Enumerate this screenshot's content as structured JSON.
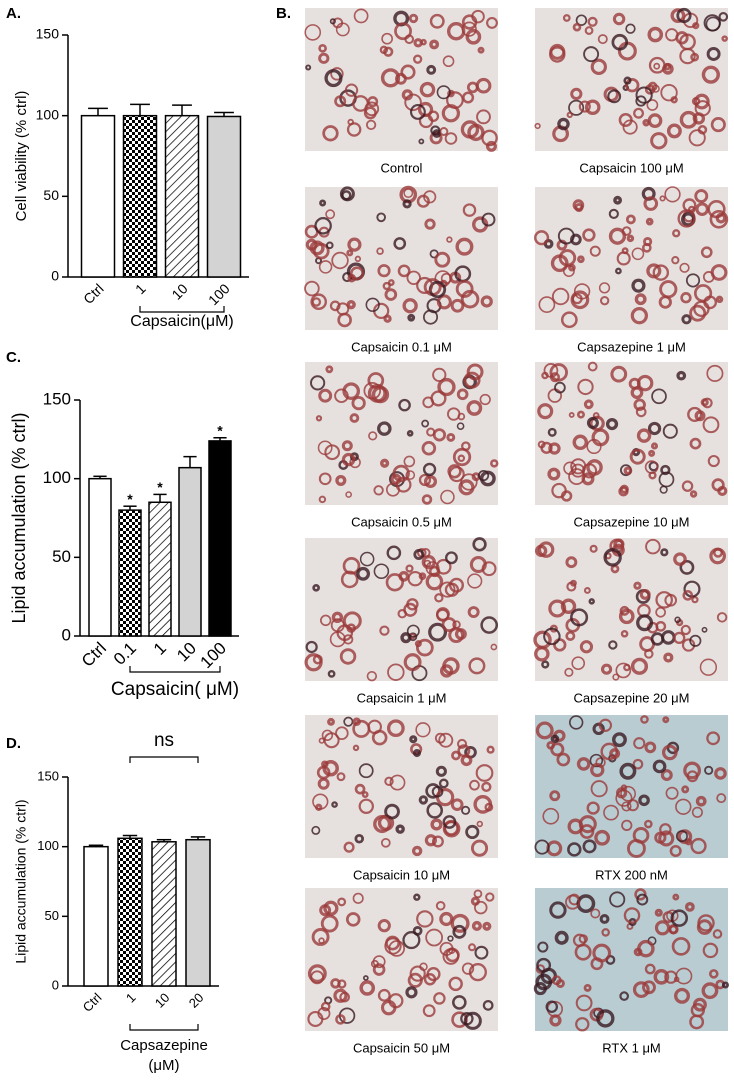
{
  "chart_data": [
    {
      "type": "bar",
      "panel": "A.",
      "ylabel": "Cell viability (% ctrl)",
      "categories": [
        "Ctrl",
        "1",
        "10",
        "100"
      ],
      "values": [
        100,
        100,
        100,
        99.5
      ],
      "errors": [
        4.5,
        7,
        6.5,
        2.5
      ],
      "fills": [
        "#ffffff",
        "checker",
        "hatch",
        "#d3d3d3"
      ],
      "group_label": [
        "Capsaicin(μM)"
      ],
      "ylim": [
        0,
        150
      ],
      "yticks": [
        0,
        50,
        100,
        150
      ]
    },
    {
      "type": "bar",
      "panel": "C.",
      "ylabel": "Lipid accumulation (% ctrl)",
      "categories": [
        "Ctrl",
        "0.1",
        "1",
        "10",
        "100"
      ],
      "values": [
        100,
        80,
        85,
        107,
        124
      ],
      "errors": [
        1.5,
        2.5,
        5,
        7,
        2
      ],
      "significance": [
        null,
        "*",
        "*",
        null,
        "*"
      ],
      "fills": [
        "#ffffff",
        "checker",
        "hatch",
        "#d3d3d3",
        "#000000"
      ],
      "group_label": [
        "Capsaicin( μM)"
      ],
      "ylim": [
        0,
        150
      ],
      "yticks": [
        0,
        50,
        100,
        150
      ]
    },
    {
      "type": "bar",
      "panel": "D.",
      "ylabel": "Lipid accumulation (% ctrl)",
      "categories": [
        "Ctrl",
        "1",
        "10",
        "20"
      ],
      "values": [
        100,
        106,
        103.5,
        105
      ],
      "errors": [
        1,
        2,
        1.5,
        2
      ],
      "fills": [
        "#ffffff",
        "checker",
        "hatch",
        "#d3d3d3"
      ],
      "group_label": [
        "Capsazepine",
        "(μM)"
      ],
      "bracket_label": "ns",
      "ylim": [
        0,
        150
      ],
      "yticks": [
        0,
        50,
        100,
        150
      ]
    }
  ],
  "micrographs": {
    "panel": "B.",
    "captions": [
      "Control",
      "Capsaicin 100  μM",
      "Capsaicin 0.1  μM",
      "Capsazepine 1  μM",
      "Capsaicin 0.5  μM",
      "Capsazepine 10  μM",
      "Capsaicin 1  μM",
      "Capsazepine 20  μM",
      "Capsaicin 10  μM",
      "RTX 200 nM",
      "Capsaicin 50  μM",
      "RTX 1  μM"
    ]
  }
}
